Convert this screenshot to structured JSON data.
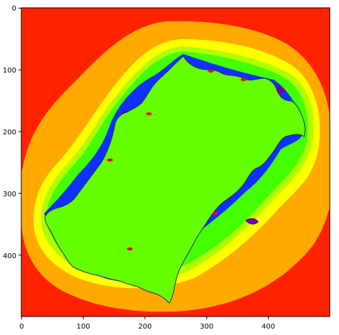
{
  "chart_data": {
    "type": "heatmap",
    "title": "",
    "xlabel": "",
    "ylabel": "",
    "xlim": [
      0,
      500
    ],
    "ylim": [
      500,
      0
    ],
    "x_ticks": [
      "0",
      "100",
      "200",
      "300",
      "400"
    ],
    "y_ticks": [
      "0",
      "100",
      "200",
      "300",
      "400"
    ],
    "grid": false,
    "legend": "none",
    "colormap": "prism",
    "colors": {
      "outer": "#ff2200",
      "band_orange_red": "#ff5500",
      "band_orange": "#ffaa00",
      "band_yellow": "#ffff00",
      "band_yellow_green": "#b0ff00",
      "band_green": "#44ff00",
      "band_blue": "#1030ff",
      "band_violet": "#7000a0",
      "interior": "#66ff00",
      "boundary": "#ff0030",
      "axes_spine": "#000000"
    },
    "description_of_content": "Julia-set escape-time image: bright green filled interior, surrounded by concentric iteration bands (blue/violet fringe, green, yellow, orange) on a red background."
  }
}
